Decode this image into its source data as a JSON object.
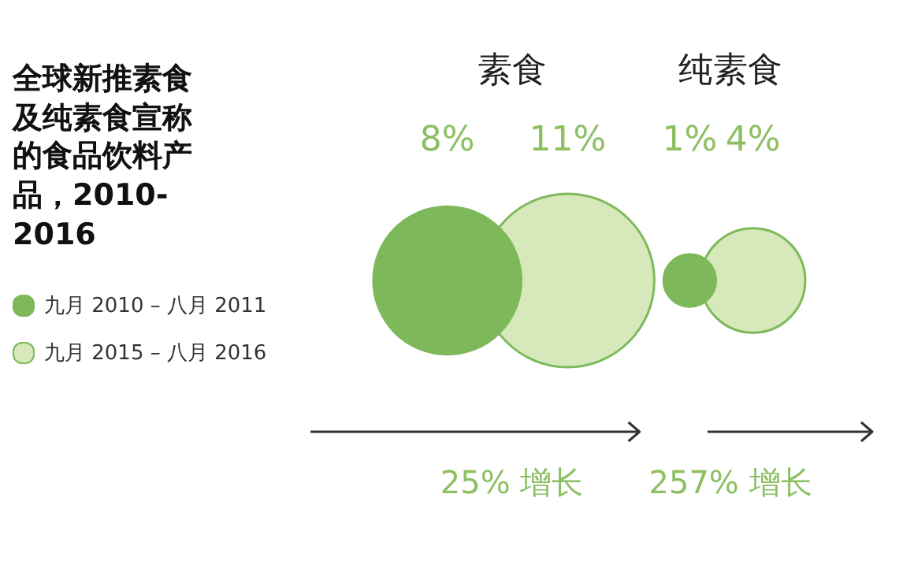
{
  "chart_data": {
    "type": "other",
    "title": "全球新推素食及纯素食宣称的食品饮料产品，2010-2016",
    "categories": [
      "素食",
      "纯素食"
    ],
    "legend": "left",
    "series": [
      {
        "name": "九月 2010 – 八月 2011",
        "color": "#7db95a",
        "values": [
          8,
          1
        ],
        "value_labels": [
          "8%",
          "1%"
        ]
      },
      {
        "name": "九月 2015 – 八月 2016",
        "color": "#d7e9bb",
        "values": [
          11,
          4
        ],
        "value_labels": [
          "11%",
          "4%"
        ]
      }
    ],
    "annotations": [
      {
        "text": "25% 增长",
        "x": "素食"
      },
      {
        "text": "257% 增长",
        "x": "纯素食"
      }
    ]
  }
}
